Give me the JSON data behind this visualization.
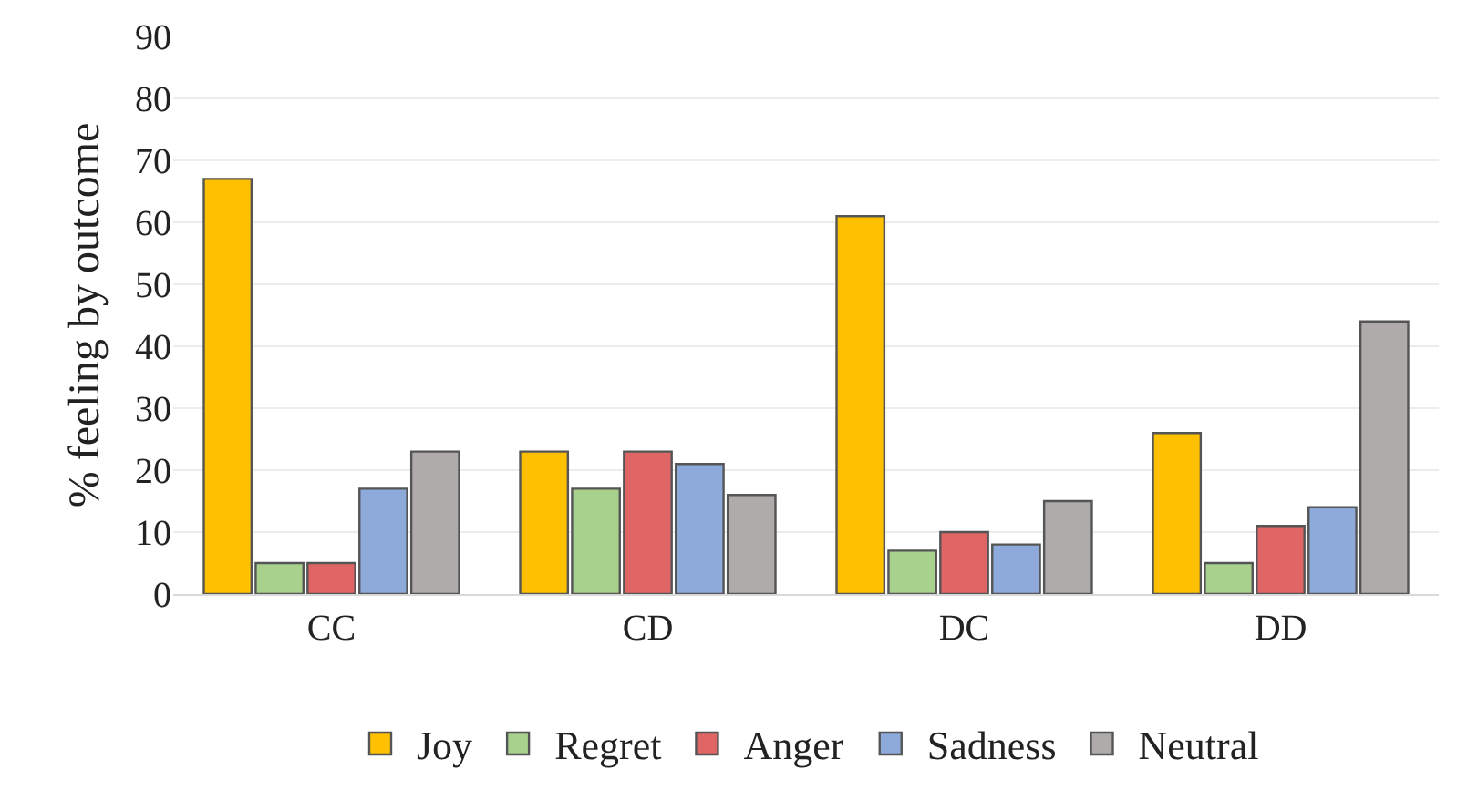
{
  "chart_data": {
    "type": "bar",
    "ylabel": "% feeling by outcome",
    "categories": [
      "CC",
      "CD",
      "DC",
      "DD"
    ],
    "series": [
      {
        "name": "Joy",
        "color": "#ffc000",
        "values": [
          67,
          23,
          61,
          26
        ]
      },
      {
        "name": "Regret",
        "color": "#a9d18e",
        "values": [
          5,
          17,
          7,
          5
        ]
      },
      {
        "name": "Anger",
        "color": "#e06666",
        "values": [
          5,
          23,
          10,
          11
        ]
      },
      {
        "name": "Sadness",
        "color": "#8eaadb",
        "values": [
          17,
          21,
          8,
          14
        ]
      },
      {
        "name": "Neutral",
        "color": "#afabab",
        "values": [
          23,
          16,
          15,
          44
        ]
      }
    ],
    "ylim": [
      0,
      90
    ],
    "yticks": [
      0,
      10,
      20,
      30,
      40,
      50,
      60,
      70,
      80,
      90
    ],
    "grid": "y",
    "legend": "bottom"
  }
}
